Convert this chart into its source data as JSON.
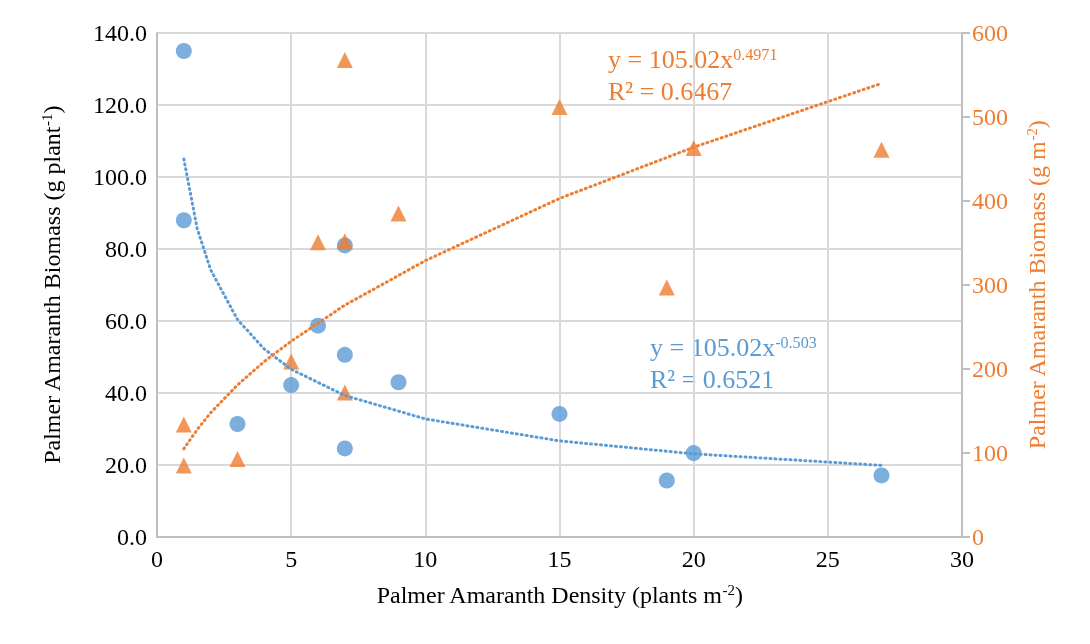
{
  "chart_data": {
    "type": "scatter",
    "xlabel": "Palmer Amaranth Density (plants m$^{-2}$)",
    "ylabel": "Palmer Amaranth Biomass (g plant$^{-1}$)",
    "y2label": "Palmer Amaranth Biomass (g m$^{-2}$)",
    "xlim": [
      0,
      30
    ],
    "xticks": [
      0,
      5,
      10,
      15,
      20,
      25,
      30
    ],
    "ylim": [
      0,
      140
    ],
    "yticks": [
      {
        "value": 0,
        "label": "0.0"
      },
      {
        "value": 20,
        "label": "20.0"
      },
      {
        "value": 40,
        "label": "40.0"
      },
      {
        "value": 60,
        "label": "60.0"
      },
      {
        "value": 80,
        "label": "80.0"
      },
      {
        "value": 100,
        "label": "100.0"
      },
      {
        "value": 120,
        "label": "120.0"
      },
      {
        "value": 140,
        "label": "140.0"
      }
    ],
    "y2lim": [
      0,
      600
    ],
    "y2ticks": [
      0,
      100,
      200,
      300,
      400,
      500,
      600
    ],
    "grid": true,
    "series": [
      {
        "color": "#5b9bd5",
        "marker": "circle",
        "axis": "y",
        "x": [
          1,
          1,
          3,
          5,
          6,
          7,
          7,
          7,
          9,
          15,
          19,
          20,
          27
        ],
        "values": [
          135,
          88,
          31.4,
          42.2,
          58.7,
          81,
          50.6,
          24.6,
          43,
          34.2,
          15.7,
          23.3,
          17.1
        ]
      },
      {
        "color": "#ed7d31",
        "marker": "triangle",
        "axis": "y2",
        "x": [
          1,
          1,
          3,
          5,
          6,
          7,
          7,
          7,
          9,
          15,
          19,
          20,
          27
        ],
        "values": [
          85,
          134,
          93,
          209,
          351,
          352,
          568,
          172,
          385,
          512,
          297,
          463,
          461
        ]
      },
      {
        "type": "line",
        "color": "#5b9bd5",
        "marker": "none",
        "line_style": "dotted",
        "axis": "y",
        "x": [
          1,
          1.5,
          2,
          3,
          4,
          5,
          7,
          10,
          15,
          20,
          27
        ],
        "values": [
          105,
          85.6,
          74.2,
          60.4,
          52.2,
          46.6,
          39.3,
          32.8,
          26.7,
          23.1,
          19.9
        ]
      },
      {
        "type": "line",
        "color": "#ed7d31",
        "marker": "none",
        "line_style": "dotted",
        "axis": "y2",
        "x": [
          1,
          1.5,
          2,
          3,
          4,
          5,
          7,
          10,
          15,
          20,
          27
        ],
        "values": [
          105,
          128,
          148,
          181,
          209,
          233,
          276,
          329,
          403,
          464,
          540
        ]
      }
    ],
    "annotations": [
      "y = 105.02x$^{0.4971}$",
      "R² = 0.6467",
      "y = 105.02x$^{-0.503}$",
      "R² = 0.6521"
    ]
  }
}
